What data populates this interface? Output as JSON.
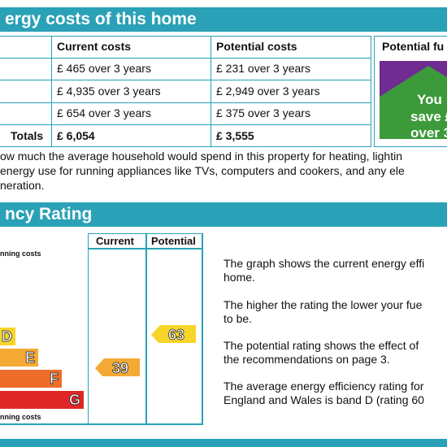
{
  "costs_section": {
    "title": "ergy costs of this home",
    "headers": [
      "Current costs",
      "Potential costs",
      "Potential fu"
    ],
    "rows": [
      {
        "current": "£ 465 over 3 years",
        "potential": "£ 231 over 3 years"
      },
      {
        "current": "£ 4,935 over 3 years",
        "potential": "£ 2,949 over 3 years"
      },
      {
        "current": "£ 654 over 3 years",
        "potential": "£ 375 over 3 years"
      }
    ],
    "totals": {
      "label": "Totals",
      "current": "£ 6,054",
      "potential": "£ 3,555"
    },
    "save_box": {
      "line1": "You",
      "line2": "save £",
      "line3": "over 3",
      "bg": "#6f2c91",
      "house": "#3d9a3a"
    }
  },
  "notes": [
    "ow much the average household would spend in this property for heating, lightin",
    "energy use for running appliances like TVs, computers and cookers, and any ele",
    "neration."
  ],
  "rating_section": {
    "title": "ncy Rating",
    "col_current": "Current",
    "col_potential": "Potential",
    "top_label": "nning costs",
    "bottom_label": "nning costs",
    "bands": [
      {
        "letter": "D",
        "color": "#f6d52a"
      },
      {
        "letter": "E",
        "color": "#f4a935"
      },
      {
        "letter": "F",
        "color": "#ee6d2a"
      },
      {
        "letter": "G",
        "color": "#e02727"
      }
    ],
    "current_rating": "39",
    "current_color": "#f4a935",
    "potential_rating": "63",
    "potential_color": "#f6d52a",
    "paragraphs": [
      [
        "The graph shows the current energy effi",
        "home."
      ],
      [
        "The higher the rating the lower your fue",
        "to be."
      ],
      [
        "The potential rating shows the effect of",
        "the recommendations on page 3."
      ],
      [
        "The average energy efficiency rating for",
        "England and Wales is band D (rating 60"
      ]
    ]
  }
}
